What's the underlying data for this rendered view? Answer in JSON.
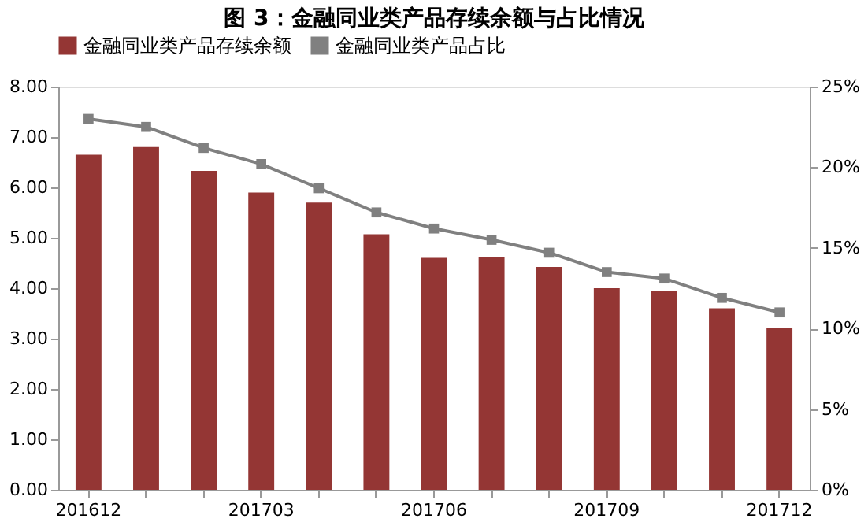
{
  "chart_data": {
    "type": "bar",
    "title": "图 3：金融同业类产品存续余额与占比情况",
    "categories": [
      "201612",
      null,
      null,
      "201703",
      null,
      null,
      "201706",
      null,
      null,
      "201709",
      null,
      null,
      "201712"
    ],
    "series": [
      {
        "name": "金融同业类产品存续余额",
        "color": "#943634",
        "values": [
          6.65,
          6.8,
          6.33,
          5.9,
          5.7,
          5.07,
          4.6,
          4.62,
          4.42,
          4.0,
          3.95,
          3.6,
          3.22
        ]
      },
      {
        "name": "金融同业类产品占比",
        "type": "line",
        "axis": "y2",
        "color": "#808080",
        "marker": "square",
        "values": [
          23.0,
          22.5,
          21.2,
          20.2,
          18.7,
          17.2,
          16.2,
          15.5,
          14.7,
          13.5,
          13.1,
          11.9,
          11.0
        ]
      }
    ],
    "ylim": [
      0,
      8
    ],
    "yticks": [
      {
        "value": 0,
        "label": "0.00"
      },
      {
        "value": 1,
        "label": "1.00"
      },
      {
        "value": 2,
        "label": "2.00"
      },
      {
        "value": 3,
        "label": "3.00"
      },
      {
        "value": 4,
        "label": "4.00"
      },
      {
        "value": 5,
        "label": "5.00"
      },
      {
        "value": 6,
        "label": "6.00"
      },
      {
        "value": 7,
        "label": "7.00"
      },
      {
        "value": 8,
        "label": "8.00"
      }
    ],
    "y2lim": [
      0,
      25
    ],
    "y2ticks": [
      {
        "value": 0,
        "label": "0%"
      },
      {
        "value": 5,
        "label": "5%"
      },
      {
        "value": 10,
        "label": "10%"
      },
      {
        "value": 15,
        "label": "15%"
      },
      {
        "value": 20,
        "label": "20%"
      },
      {
        "value": 25,
        "label": "25%"
      }
    ],
    "legend": "top",
    "grid": false
  }
}
